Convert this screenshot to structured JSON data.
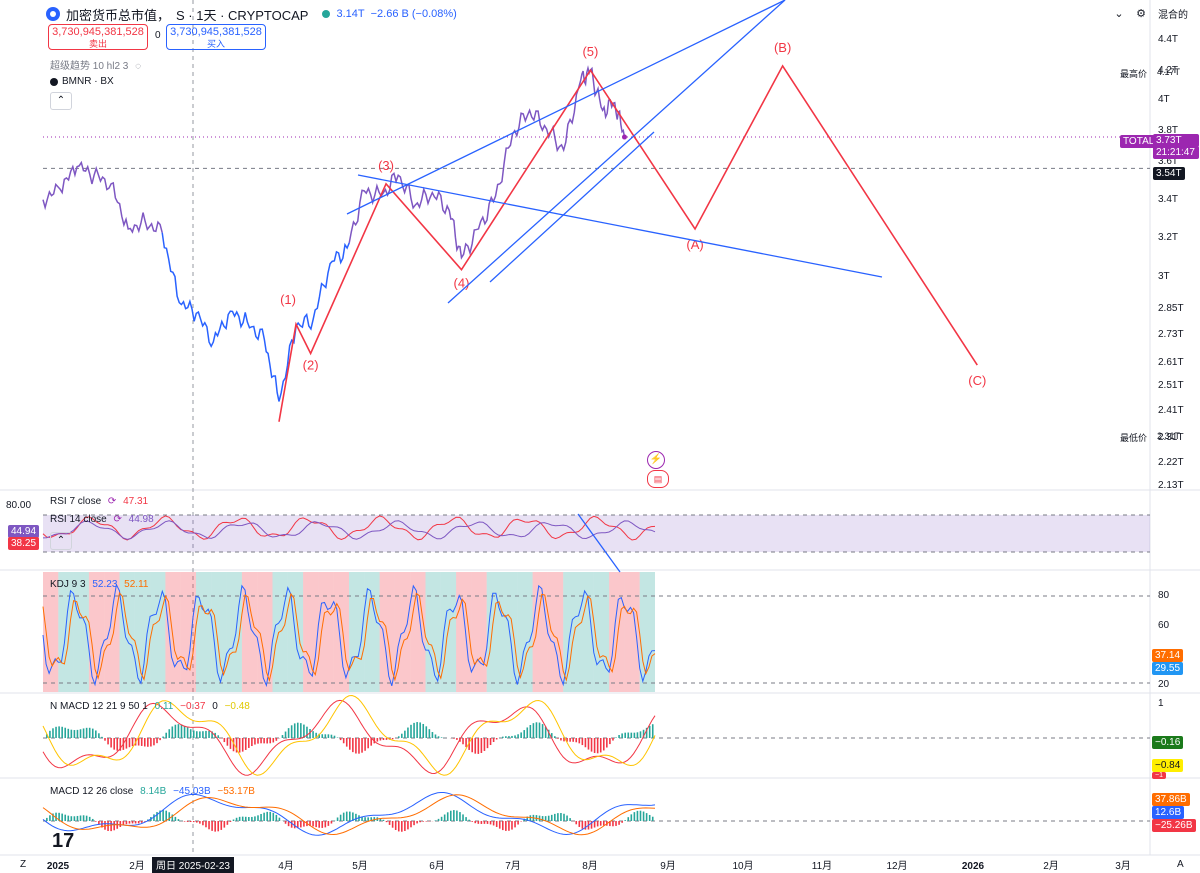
{
  "header": {
    "title": "加密货币总市值，",
    "interval": "S · 1天 · CRYPTOCAP",
    "price": "3.14T",
    "change": "−2.66 B (−0.08%)",
    "sell_value": "3,730,945,381,528",
    "sell_label": "卖出",
    "buy_value": "3,730,945,381,528",
    "buy_label": "买入",
    "spread": "0",
    "indicator_line": "超级趋势 10 hl2 3",
    "symbol2": "BMNR · BX",
    "scale_mode": "混合的"
  },
  "colors": {
    "price_line": "#7e57c2",
    "price_line_low": "#2962ff",
    "wave": "#f23645",
    "trend": "#2962ff",
    "total_label": "#9c27b0"
  },
  "price_axis": {
    "ticks": [
      "4.4T",
      "4.2T",
      "4T",
      "3.8T",
      "3.6T",
      "3.4T",
      "3.2T",
      "3T",
      "2.85T",
      "2.73T",
      "2.61T",
      "2.51T",
      "2.41T",
      "2.31T",
      "2.22T",
      "2.13T"
    ],
    "high_label": "最高价",
    "high_value": "4.17T",
    "low_label": "最低价",
    "low_value": "2.31T",
    "total_label": "TOTAL",
    "total_value": "3.73T",
    "countdown": "21:21:47",
    "level_value": "3.54T"
  },
  "time_axis": {
    "labels": [
      "2025",
      "2月",
      "周日 2025-02-23",
      "4月",
      "5月",
      "6月",
      "7月",
      "8月",
      "9月",
      "10月",
      "11月",
      "12月",
      "2026",
      "2月",
      "3月"
    ],
    "z_label": "Z",
    "a_label": "A"
  },
  "waves": {
    "labels": [
      "(1)",
      "(2)",
      "(3)",
      "(4)",
      "(5)",
      "(A)",
      "(B)",
      "(C)"
    ]
  },
  "rsi": {
    "level": "80.00",
    "rsi7_label": "RSI 7 close",
    "rsi7_value": "47.31",
    "rsi14_label": "RSI 14 close",
    "rsi14_value": "44.98",
    "axis_a": "44.94",
    "axis_b": "38.25"
  },
  "kdj": {
    "label": "KDJ 9 3",
    "k": "52.23",
    "d": "52.11",
    "ticks": [
      "80",
      "60",
      "40",
      "20"
    ],
    "axis_a": "37.14",
    "axis_b": "29.55"
  },
  "nmacd": {
    "label": "N MACD 12 21 9 50 1",
    "v1": "0.11",
    "v2": "−0.37",
    "v3": "0",
    "v4": "−0.48",
    "tick_top": "1",
    "axis_a": "−0.16",
    "axis_b": "−0.84",
    "axis_c": "−1"
  },
  "macd": {
    "label": "MACD 12 26 close",
    "v1": "8.14B",
    "v2": "−45.03B",
    "v3": "−53.17B",
    "axis_a": "37.86B",
    "axis_b": "12.6B",
    "axis_c": "−25.26B"
  },
  "chart_data": {
    "type": "line",
    "title": "加密货币总市值",
    "x_range": [
      "2025-01-01",
      "2026-04-01"
    ],
    "ylim": [
      2.13,
      4.4
    ],
    "scale": "log",
    "series": [
      {
        "name": "TOTAL",
        "x": [
          "2025-01-01",
          "2025-01-08",
          "2025-01-15",
          "2025-01-22",
          "2025-01-29",
          "2025-02-05",
          "2025-02-12",
          "2025-02-19",
          "2025-02-26",
          "2025-03-05",
          "2025-03-12",
          "2025-03-19",
          "2025-03-26",
          "2025-04-02",
          "2025-04-08",
          "2025-04-15",
          "2025-04-22",
          "2025-04-29",
          "2025-05-06",
          "2025-05-13",
          "2025-05-20",
          "2025-05-27",
          "2025-06-03",
          "2025-06-10",
          "2025-06-17",
          "2025-06-22",
          "2025-06-29",
          "2025-07-06",
          "2025-07-13",
          "2025-07-20",
          "2025-07-27",
          "2025-08-03",
          "2025-08-10",
          "2025-08-14",
          "2025-08-19",
          "2025-08-24",
          "2025-08-28"
        ],
        "values": [
          3.36,
          3.42,
          3.55,
          3.5,
          3.45,
          3.2,
          3.24,
          3.18,
          2.83,
          2.78,
          2.65,
          2.79,
          2.74,
          2.66,
          2.4,
          2.72,
          2.75,
          3.02,
          3.1,
          3.41,
          3.38,
          3.5,
          3.33,
          3.4,
          3.3,
          3.05,
          3.2,
          3.38,
          3.75,
          3.9,
          3.78,
          3.65,
          4.1,
          4.17,
          3.9,
          3.95,
          3.73
        ]
      }
    ],
    "waves": [
      {
        "label": "(1)",
        "x": "2025-04-15",
        "y": 2.73
      },
      {
        "label": "(2)",
        "x": "2025-04-21",
        "y": 2.6
      },
      {
        "label": "(3)",
        "x": "2025-05-22",
        "y": 3.45
      },
      {
        "label": "(4)",
        "x": "2025-06-22",
        "y": 2.99
      },
      {
        "label": "(5)",
        "x": "2025-08-14",
        "y": 4.17
      },
      {
        "label": "(A)",
        "x": "2025-09-26",
        "y": 3.2
      },
      {
        "label": "(B)",
        "x": "2025-11-01",
        "y": 4.2
      },
      {
        "label": "(C)",
        "x": "2026-01-20",
        "y": 2.55
      }
    ]
  }
}
